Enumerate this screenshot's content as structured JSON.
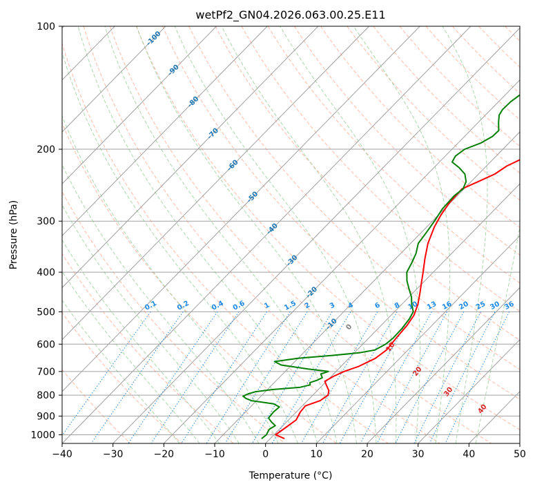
{
  "chart_data": {
    "type": "line",
    "title": "wetPf2_GN04.2026.063.00.25.E11",
    "xlabel": "Temperature (°C)",
    "ylabel": "Pressure (hPa)",
    "xlim": [
      -40,
      50
    ],
    "ylim": [
      1050,
      100
    ],
    "y_scale": "log",
    "skew": true,
    "grid": true,
    "x_ticks": [
      "−40",
      "−30",
      "−20",
      "−10",
      "0",
      "10",
      "20",
      "30",
      "40",
      "50"
    ],
    "y_ticks": [
      "100",
      "200",
      "300",
      "400",
      "500",
      "600",
      "700",
      "800",
      "900",
      "1000"
    ],
    "colors": {
      "temperature": "#ff0000",
      "dewpoint": "#008000",
      "isotherm": "#a0a0a0",
      "dry_adiabat": "#ff8c69",
      "moist_adiabat": "#8fc98f",
      "mixing_ratio": "#1e88e5",
      "isotherm_label": "#1f77b4",
      "adiabat_label": "#d62728"
    },
    "series": [
      {
        "key": "temperature",
        "points": [
          [
            1022,
            2.8
          ],
          [
            1000,
            0.3
          ],
          [
            960,
            0.9
          ],
          [
            920,
            1.5
          ],
          [
            880,
            0.8
          ],
          [
            850,
            0.6
          ],
          [
            825,
            2.5
          ],
          [
            800,
            3.0
          ],
          [
            780,
            2.3
          ],
          [
            760,
            1.0
          ],
          [
            740,
            -0.3
          ],
          [
            720,
            0.4
          ],
          [
            700,
            1.6
          ],
          [
            680,
            3.5
          ],
          [
            650,
            5.2
          ],
          [
            620,
            5.8
          ],
          [
            580,
            5.4
          ],
          [
            540,
            5.1
          ],
          [
            510,
            4.5
          ],
          [
            480,
            3.2
          ],
          [
            450,
            1.4
          ],
          [
            420,
            -0.6
          ],
          [
            400,
            -2.0
          ],
          [
            370,
            -4.3
          ],
          [
            340,
            -6.6
          ],
          [
            310,
            -8.5
          ],
          [
            290,
            -9.5
          ],
          [
            270,
            -10.2
          ],
          [
            250,
            -10.4
          ],
          [
            240,
            -8.6
          ],
          [
            230,
            -6.8
          ],
          [
            220,
            -6.0
          ],
          [
            210,
            -4.2
          ],
          [
            200,
            -2.2
          ],
          [
            190,
            0.0
          ],
          [
            180,
            2.1
          ],
          [
            170,
            4.0
          ],
          [
            160,
            5.8
          ],
          [
            150,
            7.4
          ],
          [
            140,
            9.1
          ],
          [
            130,
            10.8
          ],
          [
            120,
            12.8
          ],
          [
            112,
            15.0
          ],
          [
            105,
            18.0
          ],
          [
            100,
            20.7
          ]
        ]
      },
      {
        "key": "dewpoint",
        "points": [
          [
            1022,
            -1.7
          ],
          [
            1000,
            -1.5
          ],
          [
            970,
            -2.0
          ],
          [
            950,
            -1.5
          ],
          [
            930,
            -3.0
          ],
          [
            910,
            -4.3
          ],
          [
            880,
            -4.5
          ],
          [
            855,
            -4.3
          ],
          [
            840,
            -6.0
          ],
          [
            825,
            -11.0
          ],
          [
            815,
            -12.5
          ],
          [
            805,
            -13.5
          ],
          [
            795,
            -13.0
          ],
          [
            785,
            -12.0
          ],
          [
            775,
            -9.0
          ],
          [
            765,
            -4.0
          ],
          [
            755,
            -2.5
          ],
          [
            745,
            -3.0
          ],
          [
            735,
            -2.0
          ],
          [
            725,
            -1.5
          ],
          [
            710,
            -2.5
          ],
          [
            700,
            -1.5
          ],
          [
            690,
            -6.0
          ],
          [
            675,
            -12.0
          ],
          [
            662,
            -14.0
          ],
          [
            650,
            -10.0
          ],
          [
            640,
            -4.0
          ],
          [
            630,
            1.0
          ],
          [
            620,
            3.5
          ],
          [
            600,
            4.5
          ],
          [
            580,
            4.8
          ],
          [
            550,
            4.7
          ],
          [
            520,
            4.3
          ],
          [
            500,
            3.7
          ],
          [
            480,
            2.0
          ],
          [
            460,
            0.5
          ],
          [
            440,
            -1.5
          ],
          [
            420,
            -3.5
          ],
          [
            400,
            -5.2
          ],
          [
            380,
            -6.0
          ],
          [
            360,
            -7.0
          ],
          [
            340,
            -8.5
          ],
          [
            320,
            -9.0
          ],
          [
            300,
            -9.6
          ],
          [
            280,
            -10.4
          ],
          [
            260,
            -10.6
          ],
          [
            250,
            -10.2
          ],
          [
            240,
            -11.0
          ],
          [
            230,
            -12.7
          ],
          [
            222,
            -15.0
          ],
          [
            215,
            -17.5
          ],
          [
            208,
            -18.0
          ],
          [
            200,
            -17.5
          ],
          [
            193,
            -15.5
          ],
          [
            186,
            -14.5
          ],
          [
            180,
            -14.4
          ],
          [
            172,
            -16.0
          ],
          [
            165,
            -17.3
          ],
          [
            160,
            -17.7
          ],
          [
            153,
            -17.6
          ],
          [
            147,
            -17.1
          ],
          [
            140,
            -16.0
          ],
          [
            133,
            -14.5
          ],
          [
            125,
            -12.2
          ],
          [
            118,
            -10.0
          ],
          [
            110,
            -8.0
          ],
          [
            105,
            -6.8
          ],
          [
            100,
            -5.8
          ]
        ]
      }
    ],
    "isotherm_labels": [
      "-100",
      "-90",
      "-80",
      "-70",
      "-60",
      "-50",
      "-40",
      "-30",
      "-20",
      "-10"
    ],
    "mixing_ratio_labels": [
      "0.1",
      "0.2",
      "0.4",
      "0.6",
      "1",
      "1.5",
      "2",
      "3",
      "4",
      "6",
      "8",
      "10",
      "13",
      "16",
      "20",
      "25",
      "30",
      "36"
    ],
    "moist_adiabat_labels": [
      "0",
      "10",
      "20",
      "30",
      "40"
    ]
  }
}
